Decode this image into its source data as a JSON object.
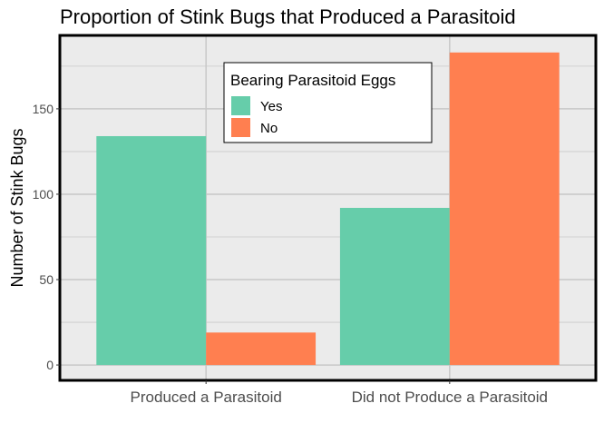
{
  "chart_data": {
    "type": "bar",
    "title": "Proportion of Stink Bugs that Produced a Parasitoid",
    "xlabel": "",
    "ylabel": "Number of Stink Bugs",
    "categories": [
      "Produced a Parasitoid",
      "Did not Produce a Parasitoid"
    ],
    "series": [
      {
        "name": "Yes",
        "color": "#66CDAA",
        "values": [
          134,
          92
        ]
      },
      {
        "name": "No",
        "color": "#FF7F50",
        "values": [
          19,
          183
        ]
      }
    ],
    "ylim": [
      -9,
      193
    ],
    "yticks": [
      0,
      50,
      100,
      150
    ],
    "ytick_labels": [
      "0",
      "50",
      "100",
      "150"
    ],
    "grid": true,
    "legend": {
      "title": "Bearing Parasitoid Eggs",
      "position": "top-center inside"
    },
    "colors": {
      "panel": "#EBEBEB",
      "grid": "#C8C8C8",
      "border": "#000000"
    }
  }
}
